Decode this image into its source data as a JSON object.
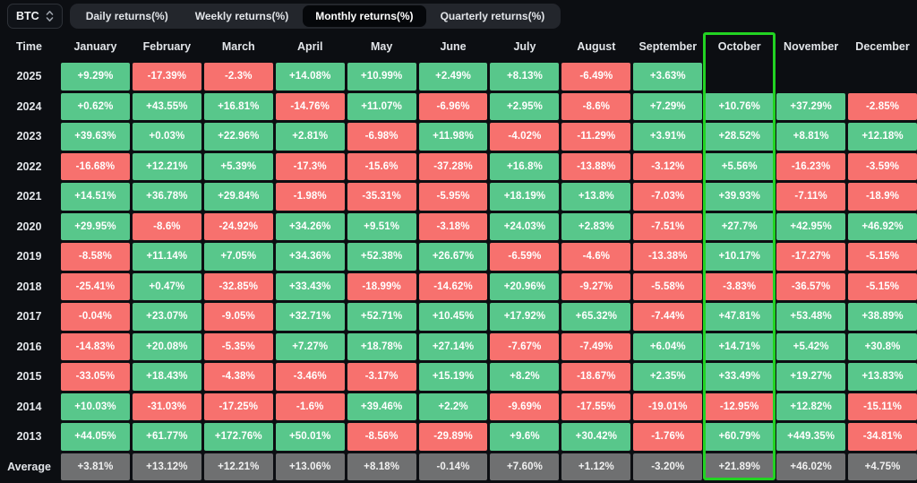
{
  "toolbar": {
    "symbol": "BTC",
    "tabs": [
      {
        "label": "Daily returns(%)",
        "active": false
      },
      {
        "label": "Weekly returns(%)",
        "active": false
      },
      {
        "label": "Monthly returns(%)",
        "active": true
      },
      {
        "label": "Quarterly returns(%)",
        "active": false
      }
    ]
  },
  "table": {
    "corner": "Time",
    "months": [
      "January",
      "February",
      "March",
      "April",
      "May",
      "June",
      "July",
      "August",
      "September",
      "October",
      "November",
      "December"
    ],
    "highlighted_month": "October",
    "rows": [
      {
        "label": "2025",
        "values": [
          "+9.29%",
          "-17.39%",
          "-2.3%",
          "+14.08%",
          "+10.99%",
          "+2.49%",
          "+8.13%",
          "-6.49%",
          "+3.63%",
          "",
          "",
          ""
        ]
      },
      {
        "label": "2024",
        "values": [
          "+0.62%",
          "+43.55%",
          "+16.81%",
          "-14.76%",
          "+11.07%",
          "-6.96%",
          "+2.95%",
          "-8.6%",
          "+7.29%",
          "+10.76%",
          "+37.29%",
          "-2.85%"
        ]
      },
      {
        "label": "2023",
        "values": [
          "+39.63%",
          "+0.03%",
          "+22.96%",
          "+2.81%",
          "-6.98%",
          "+11.98%",
          "-4.02%",
          "-11.29%",
          "+3.91%",
          "+28.52%",
          "+8.81%",
          "+12.18%"
        ]
      },
      {
        "label": "2022",
        "values": [
          "-16.68%",
          "+12.21%",
          "+5.39%",
          "-17.3%",
          "-15.6%",
          "-37.28%",
          "+16.8%",
          "-13.88%",
          "-3.12%",
          "+5.56%",
          "-16.23%",
          "-3.59%"
        ]
      },
      {
        "label": "2021",
        "values": [
          "+14.51%",
          "+36.78%",
          "+29.84%",
          "-1.98%",
          "-35.31%",
          "-5.95%",
          "+18.19%",
          "+13.8%",
          "-7.03%",
          "+39.93%",
          "-7.11%",
          "-18.9%"
        ]
      },
      {
        "label": "2020",
        "values": [
          "+29.95%",
          "-8.6%",
          "-24.92%",
          "+34.26%",
          "+9.51%",
          "-3.18%",
          "+24.03%",
          "+2.83%",
          "-7.51%",
          "+27.7%",
          "+42.95%",
          "+46.92%"
        ]
      },
      {
        "label": "2019",
        "values": [
          "-8.58%",
          "+11.14%",
          "+7.05%",
          "+34.36%",
          "+52.38%",
          "+26.67%",
          "-6.59%",
          "-4.6%",
          "-13.38%",
          "+10.17%",
          "-17.27%",
          "-5.15%"
        ]
      },
      {
        "label": "2018",
        "values": [
          "-25.41%",
          "+0.47%",
          "-32.85%",
          "+33.43%",
          "-18.99%",
          "-14.62%",
          "+20.96%",
          "-9.27%",
          "-5.58%",
          "-3.83%",
          "-36.57%",
          "-5.15%"
        ]
      },
      {
        "label": "2017",
        "values": [
          "-0.04%",
          "+23.07%",
          "-9.05%",
          "+32.71%",
          "+52.71%",
          "+10.45%",
          "+17.92%",
          "+65.32%",
          "-7.44%",
          "+47.81%",
          "+53.48%",
          "+38.89%"
        ]
      },
      {
        "label": "2016",
        "values": [
          "-14.83%",
          "+20.08%",
          "-5.35%",
          "+7.27%",
          "+18.78%",
          "+27.14%",
          "-7.67%",
          "-7.49%",
          "+6.04%",
          "+14.71%",
          "+5.42%",
          "+30.8%"
        ]
      },
      {
        "label": "2015",
        "values": [
          "-33.05%",
          "+18.43%",
          "-4.38%",
          "-3.46%",
          "-3.17%",
          "+15.19%",
          "+8.2%",
          "-18.67%",
          "+2.35%",
          "+33.49%",
          "+19.27%",
          "+13.83%"
        ]
      },
      {
        "label": "2014",
        "values": [
          "+10.03%",
          "-31.03%",
          "-17.25%",
          "-1.6%",
          "+39.46%",
          "+2.2%",
          "-9.69%",
          "-17.55%",
          "-19.01%",
          "-12.95%",
          "+12.82%",
          "-15.11%"
        ]
      },
      {
        "label": "2013",
        "values": [
          "+44.05%",
          "+61.77%",
          "+172.76%",
          "+50.01%",
          "-8.56%",
          "-29.89%",
          "+9.6%",
          "+30.42%",
          "-1.76%",
          "+60.79%",
          "+449.35%",
          "-34.81%"
        ]
      },
      {
        "label": "Average",
        "values": [
          "+3.81%",
          "+13.12%",
          "+12.21%",
          "+13.06%",
          "+8.18%",
          "-0.14%",
          "+7.60%",
          "+1.12%",
          "-3.20%",
          "+21.89%",
          "+46.02%",
          "+4.75%"
        ]
      }
    ]
  },
  "chart_data": {
    "type": "heatmap",
    "title": "BTC Monthly returns(%)",
    "x_labels": [
      "January",
      "February",
      "March",
      "April",
      "May",
      "June",
      "July",
      "August",
      "September",
      "October",
      "November",
      "December"
    ],
    "y_labels": [
      "2025",
      "2024",
      "2023",
      "2022",
      "2021",
      "2020",
      "2019",
      "2018",
      "2017",
      "2016",
      "2015",
      "2014",
      "2013",
      "Average"
    ],
    "values_percent": [
      [
        9.29,
        -17.39,
        -2.3,
        14.08,
        10.99,
        2.49,
        8.13,
        -6.49,
        3.63,
        null,
        null,
        null
      ],
      [
        0.62,
        43.55,
        16.81,
        -14.76,
        11.07,
        -6.96,
        2.95,
        -8.6,
        7.29,
        10.76,
        37.29,
        -2.85
      ],
      [
        39.63,
        0.03,
        22.96,
        2.81,
        -6.98,
        11.98,
        -4.02,
        -11.29,
        3.91,
        28.52,
        8.81,
        12.18
      ],
      [
        -16.68,
        12.21,
        5.39,
        -17.3,
        -15.6,
        -37.28,
        16.8,
        -13.88,
        -3.12,
        5.56,
        -16.23,
        -3.59
      ],
      [
        14.51,
        36.78,
        29.84,
        -1.98,
        -35.31,
        -5.95,
        18.19,
        13.8,
        -7.03,
        39.93,
        -7.11,
        -18.9
      ],
      [
        29.95,
        -8.6,
        -24.92,
        34.26,
        9.51,
        -3.18,
        24.03,
        2.83,
        -7.51,
        27.7,
        42.95,
        46.92
      ],
      [
        -8.58,
        11.14,
        7.05,
        34.36,
        52.38,
        26.67,
        -6.59,
        -4.6,
        -13.38,
        10.17,
        -17.27,
        -5.15
      ],
      [
        -25.41,
        0.47,
        -32.85,
        33.43,
        -18.99,
        -14.62,
        20.96,
        -9.27,
        -5.58,
        -3.83,
        -36.57,
        -5.15
      ],
      [
        -0.04,
        23.07,
        -9.05,
        32.71,
        52.71,
        10.45,
        17.92,
        65.32,
        -7.44,
        47.81,
        53.48,
        38.89
      ],
      [
        -14.83,
        20.08,
        -5.35,
        7.27,
        18.78,
        27.14,
        -7.67,
        -7.49,
        6.04,
        14.71,
        5.42,
        30.8
      ],
      [
        -33.05,
        18.43,
        -4.38,
        -3.46,
        -3.17,
        15.19,
        8.2,
        -18.67,
        2.35,
        33.49,
        19.27,
        13.83
      ],
      [
        10.03,
        -31.03,
        -17.25,
        -1.6,
        39.46,
        2.2,
        -9.69,
        -17.55,
        -19.01,
        -12.95,
        12.82,
        -15.11
      ],
      [
        44.05,
        61.77,
        172.76,
        50.01,
        -8.56,
        -29.89,
        9.6,
        30.42,
        -1.76,
        60.79,
        449.35,
        -34.81
      ],
      [
        3.81,
        13.12,
        12.21,
        13.06,
        8.18,
        -0.14,
        7.6,
        1.12,
        -3.2,
        21.89,
        46.02,
        4.75
      ]
    ],
    "highlighted_column": "October",
    "legend_position": "none",
    "colors": {
      "positive_cell": "#58c78b",
      "negative_cell": "#f7716e",
      "average_row_cell": "#6f7071",
      "highlight_border": "#22d322",
      "background": "#0c0e12"
    }
  }
}
